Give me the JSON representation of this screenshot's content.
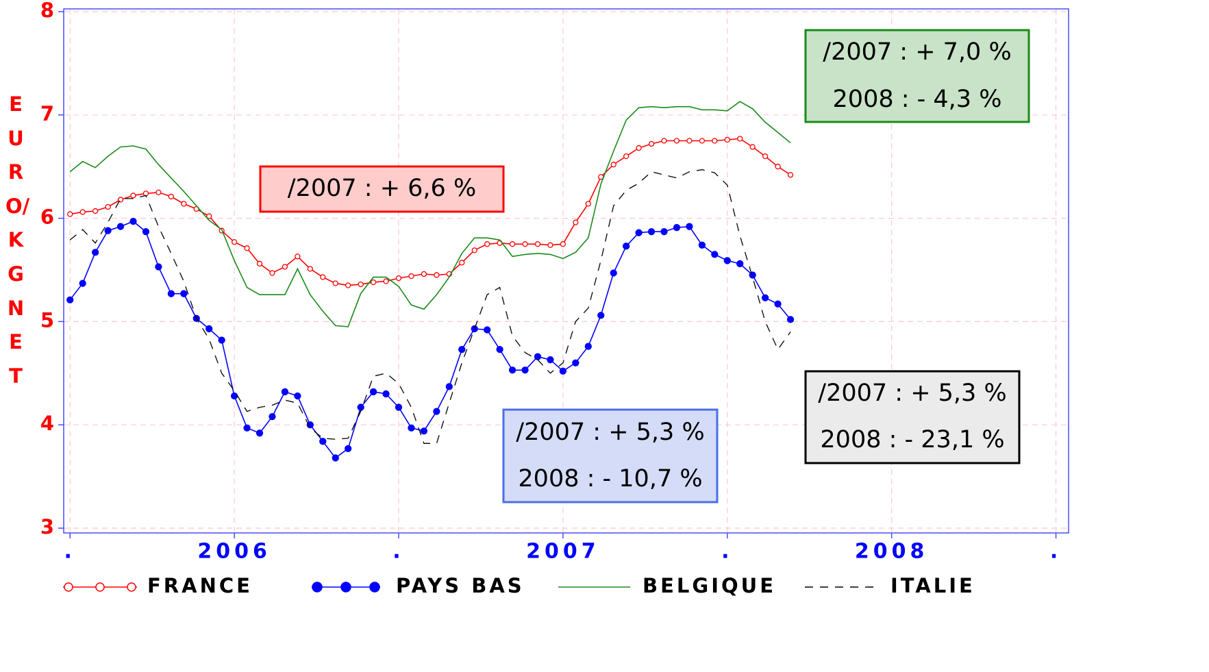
{
  "chart_data": {
    "type": "line",
    "y_label": "EURO/KG NET",
    "xlim": [
      -1,
      158
    ],
    "ylim": [
      3,
      8
    ],
    "yticks": [
      3,
      4,
      5,
      6,
      7,
      8
    ],
    "xticks": [
      {
        "value": 0,
        "label": "."
      },
      {
        "value": 26,
        "label": "2006"
      },
      {
        "value": 52,
        "label": "."
      },
      {
        "value": 78,
        "label": "2007"
      },
      {
        "value": 104,
        "label": "."
      },
      {
        "value": 130,
        "label": "2008"
      },
      {
        "value": 156,
        "label": "."
      }
    ],
    "grid": true,
    "x": [
      0,
      2,
      4,
      6,
      8,
      10,
      12,
      14,
      16,
      18,
      20,
      22,
      24,
      26,
      28,
      30,
      32,
      34,
      36,
      38,
      40,
      42,
      44,
      46,
      48,
      50,
      52,
      54,
      56,
      58,
      60,
      62,
      64,
      66,
      68,
      70,
      72,
      74,
      76,
      78,
      80,
      82,
      84,
      86,
      88,
      90,
      92,
      94,
      96,
      98,
      100,
      102,
      104,
      106,
      108,
      110,
      112,
      114
    ],
    "series": [
      {
        "name": "FRANCE",
        "color": "#ff0000",
        "marker": "open-circle",
        "dash": "none",
        "values": [
          6.04,
          6.06,
          6.07,
          6.11,
          6.18,
          6.22,
          6.24,
          6.25,
          6.21,
          6.14,
          6.09,
          6.02,
          5.88,
          5.77,
          5.71,
          5.56,
          5.47,
          5.53,
          5.63,
          5.51,
          5.43,
          5.37,
          5.35,
          5.36,
          5.38,
          5.39,
          5.42,
          5.44,
          5.46,
          5.45,
          5.46,
          5.57,
          5.69,
          5.75,
          5.76,
          5.75,
          5.75,
          5.75,
          5.74,
          5.75,
          5.96,
          6.14,
          6.4,
          6.52,
          6.6,
          6.68,
          6.72,
          6.75,
          6.75,
          6.75,
          6.75,
          6.75,
          6.76,
          6.77,
          6.69,
          6.6,
          6.5,
          6.42
        ]
      },
      {
        "name": "PAYS  BAS",
        "color": "#0000ff",
        "marker": "filled-circle",
        "dash": "none",
        "values": [
          5.21,
          5.37,
          5.67,
          5.88,
          5.92,
          5.97,
          5.87,
          5.53,
          5.27,
          5.27,
          5.03,
          4.93,
          4.82,
          4.28,
          3.97,
          3.92,
          4.08,
          4.32,
          4.28,
          4.0,
          3.84,
          3.68,
          3.77,
          4.17,
          4.32,
          4.3,
          4.17,
          3.97,
          3.94,
          4.13,
          4.37,
          4.73,
          4.93,
          4.92,
          4.73,
          4.53,
          4.53,
          4.66,
          4.63,
          4.52,
          4.6,
          4.76,
          5.06,
          5.47,
          5.73,
          5.86,
          5.87,
          5.87,
          5.91,
          5.92,
          5.74,
          5.65,
          5.59,
          5.56,
          5.45,
          5.23,
          5.17,
          5.02
        ]
      },
      {
        "name": "BELGIQUE",
        "color": "#1a8a1a",
        "marker": "none",
        "dash": "none",
        "values": [
          6.45,
          6.55,
          6.49,
          6.6,
          6.69,
          6.7,
          6.67,
          6.52,
          6.39,
          6.26,
          6.12,
          5.98,
          5.89,
          5.59,
          5.33,
          5.26,
          5.26,
          5.26,
          5.51,
          5.26,
          5.1,
          4.96,
          4.95,
          5.27,
          5.43,
          5.43,
          5.34,
          5.16,
          5.12,
          5.26,
          5.43,
          5.66,
          5.81,
          5.81,
          5.79,
          5.63,
          5.65,
          5.66,
          5.65,
          5.61,
          5.67,
          5.81,
          6.33,
          6.65,
          6.95,
          7.07,
          7.08,
          7.07,
          7.08,
          7.08,
          7.05,
          7.05,
          7.04,
          7.13,
          7.06,
          6.93,
          6.83,
          6.73
        ]
      },
      {
        "name": "ITALIE",
        "color": "#000000",
        "marker": "none",
        "dash": "12 10",
        "values": [
          5.79,
          5.89,
          5.76,
          5.96,
          6.19,
          6.19,
          6.22,
          5.92,
          5.66,
          5.39,
          5.03,
          4.83,
          4.5,
          4.33,
          4.13,
          4.17,
          4.19,
          4.24,
          4.21,
          3.97,
          3.87,
          3.86,
          3.87,
          4.13,
          4.47,
          4.5,
          4.4,
          4.17,
          3.82,
          3.82,
          4.21,
          4.6,
          4.93,
          5.26,
          5.33,
          4.86,
          4.7,
          4.63,
          4.5,
          4.6,
          5.0,
          5.13,
          5.59,
          6.12,
          6.27,
          6.34,
          6.45,
          6.42,
          6.39,
          6.45,
          6.47,
          6.44,
          6.32,
          5.83,
          5.43,
          5.0,
          4.73,
          4.9
        ]
      }
    ],
    "annotations": [
      {
        "lines": [
          "/2007 : + 6,6 %"
        ],
        "fill": "#ffcccc",
        "border": "#ff0000"
      },
      {
        "lines": [
          "/2007 : + 7,0 %",
          "2008 : - 4,3 %"
        ],
        "fill": "#c8e3c8",
        "border": "#1a8a1a"
      },
      {
        "lines": [
          "/2007 : + 5,3 %",
          "2008 : - 10,7 %"
        ],
        "fill": "#d4dcf8",
        "border": "#4a6ee8"
      },
      {
        "lines": [
          "/2007 : + 5,3 %",
          "2008 : - 23,1 %"
        ],
        "fill": "#ebebeb",
        "border": "#000000"
      }
    ]
  }
}
